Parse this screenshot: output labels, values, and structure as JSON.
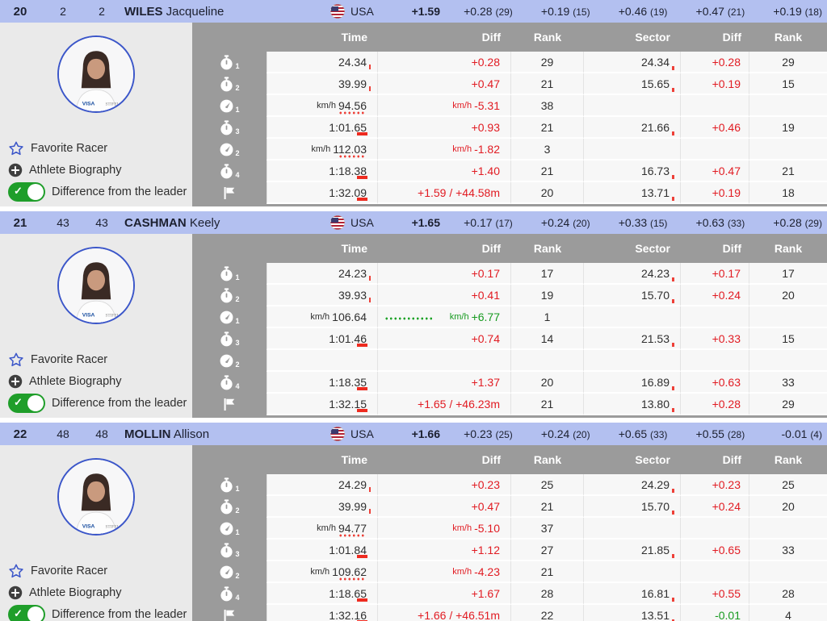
{
  "ui": {
    "favorite_label": "Favorite Racer",
    "biography_label": "Athlete Biography",
    "toggle_label": "Difference from the leader",
    "columns": [
      "Time",
      "Diff",
      "Rank",
      "Sector",
      "Diff",
      "Rank"
    ],
    "speed_unit": "km/h",
    "nation": "USA"
  },
  "colors": {
    "header_blue": "#b3c0f0",
    "table_gray": "#9b9b9b",
    "panel_gray": "#eaeaea",
    "diff_red": "#e11b22",
    "diff_green": "#169a1f",
    "star_blue": "#3b56c9",
    "toggle_green": "#1f9e2a"
  },
  "racers": [
    {
      "rank": "20",
      "bib1": "2",
      "bib2": "2",
      "last_name": "WILES",
      "first_name": "Jacqueline",
      "nation": "USA",
      "total_diff": "+1.59",
      "split_diffs": [
        {
          "diff": "+0.28",
          "rank": "(29)"
        },
        {
          "diff": "+0.19",
          "rank": "(15)"
        },
        {
          "diff": "+0.46",
          "rank": "(19)"
        },
        {
          "diff": "+0.47",
          "rank": "(21)"
        },
        {
          "diff": "+0.19",
          "rank": "(18)"
        }
      ],
      "rows": [
        {
          "icon": "stopwatch",
          "sub": "1",
          "tu": "",
          "time": "24.34",
          "du": "",
          "diff": "+0.28",
          "dc": "red",
          "rank": "29",
          "sector": "24.34",
          "sdiff": "+0.28",
          "sdc": "red",
          "srank": "29",
          "tmark": "tick",
          "smark": "tick",
          "dmark": ""
        },
        {
          "icon": "stopwatch",
          "sub": "2",
          "tu": "",
          "time": "39.99",
          "du": "",
          "diff": "+0.47",
          "dc": "red",
          "rank": "21",
          "sector": "15.65",
          "sdiff": "+0.19",
          "sdc": "red",
          "srank": "15",
          "tmark": "tick",
          "smark": "tick",
          "dmark": ""
        },
        {
          "icon": "speed",
          "sub": "1",
          "tu": "km/h",
          "time": "94.56",
          "du": "km/h",
          "diff": "-5.31",
          "dc": "red",
          "rank": "38",
          "sector": "",
          "sdiff": "",
          "sdc": "",
          "srank": "",
          "tmark": "dots",
          "smark": "",
          "dmark": ""
        },
        {
          "icon": "stopwatch",
          "sub": "3",
          "tu": "",
          "time": "1:01.65",
          "du": "",
          "diff": "+0.93",
          "dc": "red",
          "rank": "21",
          "sector": "21.66",
          "sdiff": "+0.46",
          "sdc": "red",
          "srank": "19",
          "tmark": "bar",
          "smark": "tick",
          "dmark": ""
        },
        {
          "icon": "speed",
          "sub": "2",
          "tu": "km/h",
          "time": "112.03",
          "du": "km/h",
          "diff": "-1.82",
          "dc": "red",
          "rank": "3",
          "sector": "",
          "sdiff": "",
          "sdc": "",
          "srank": "",
          "tmark": "dots",
          "smark": "",
          "dmark": ""
        },
        {
          "icon": "stopwatch",
          "sub": "4",
          "tu": "",
          "time": "1:18.38",
          "du": "",
          "diff": "+1.40",
          "dc": "red",
          "rank": "21",
          "sector": "16.73",
          "sdiff": "+0.47",
          "sdc": "red",
          "srank": "21",
          "tmark": "bar",
          "smark": "tick",
          "dmark": ""
        },
        {
          "icon": "flag",
          "sub": "",
          "tu": "",
          "time": "1:32.09",
          "du": "",
          "diff": "+1.59 / +44.58m",
          "dc": "red",
          "rank": "20",
          "sector": "13.71",
          "sdiff": "+0.19",
          "sdc": "red",
          "srank": "18",
          "tmark": "bar",
          "smark": "tick",
          "dmark": ""
        }
      ]
    },
    {
      "rank": "21",
      "bib1": "43",
      "bib2": "43",
      "last_name": "CASHMAN",
      "first_name": "Keely",
      "nation": "USA",
      "total_diff": "+1.65",
      "split_diffs": [
        {
          "diff": "+0.17",
          "rank": "(17)"
        },
        {
          "diff": "+0.24",
          "rank": "(20)"
        },
        {
          "diff": "+0.33",
          "rank": "(15)"
        },
        {
          "diff": "+0.63",
          "rank": "(33)"
        },
        {
          "diff": "+0.28",
          "rank": "(29)"
        }
      ],
      "rows": [
        {
          "icon": "stopwatch",
          "sub": "1",
          "tu": "",
          "time": "24.23",
          "du": "",
          "diff": "+0.17",
          "dc": "red",
          "rank": "17",
          "sector": "24.23",
          "sdiff": "+0.17",
          "sdc": "red",
          "srank": "17",
          "tmark": "tick",
          "smark": "tick",
          "dmark": ""
        },
        {
          "icon": "stopwatch",
          "sub": "2",
          "tu": "",
          "time": "39.93",
          "du": "",
          "diff": "+0.41",
          "dc": "red",
          "rank": "19",
          "sector": "15.70",
          "sdiff": "+0.24",
          "sdc": "red",
          "srank": "20",
          "tmark": "tick",
          "smark": "tick",
          "dmark": ""
        },
        {
          "icon": "speed",
          "sub": "1",
          "tu": "km/h",
          "time": "106.64",
          "du": "km/h",
          "diff": "+6.77",
          "dc": "green",
          "rank": "1",
          "sector": "",
          "sdiff": "",
          "sdc": "",
          "srank": "",
          "tmark": "",
          "smark": "",
          "dmark": "dots-green"
        },
        {
          "icon": "stopwatch",
          "sub": "3",
          "tu": "",
          "time": "1:01.46",
          "du": "",
          "diff": "+0.74",
          "dc": "red",
          "rank": "14",
          "sector": "21.53",
          "sdiff": "+0.33",
          "sdc": "red",
          "srank": "15",
          "tmark": "bar",
          "smark": "tick",
          "dmark": ""
        },
        {
          "icon": "speed",
          "sub": "2",
          "tu": "",
          "time": "",
          "du": "",
          "diff": "",
          "dc": "",
          "rank": "",
          "sector": "",
          "sdiff": "",
          "sdc": "",
          "srank": "",
          "tmark": "",
          "smark": "",
          "dmark": ""
        },
        {
          "icon": "stopwatch",
          "sub": "4",
          "tu": "",
          "time": "1:18.35",
          "du": "",
          "diff": "+1.37",
          "dc": "red",
          "rank": "20",
          "sector": "16.89",
          "sdiff": "+0.63",
          "sdc": "red",
          "srank": "33",
          "tmark": "bar",
          "smark": "tick",
          "dmark": ""
        },
        {
          "icon": "flag",
          "sub": "",
          "tu": "",
          "time": "1:32.15",
          "du": "",
          "diff": "+1.65 / +46.23m",
          "dc": "red",
          "rank": "21",
          "sector": "13.80",
          "sdiff": "+0.28",
          "sdc": "red",
          "srank": "29",
          "tmark": "bar",
          "smark": "tick",
          "dmark": ""
        }
      ]
    },
    {
      "rank": "22",
      "bib1": "48",
      "bib2": "48",
      "last_name": "MOLLIN",
      "first_name": "Allison",
      "nation": "USA",
      "total_diff": "+1.66",
      "split_diffs": [
        {
          "diff": "+0.23",
          "rank": "(25)"
        },
        {
          "diff": "+0.24",
          "rank": "(20)"
        },
        {
          "diff": "+0.65",
          "rank": "(33)"
        },
        {
          "diff": "+0.55",
          "rank": "(28)"
        },
        {
          "diff": "-0.01",
          "rank": "(4)"
        }
      ],
      "rows": [
        {
          "icon": "stopwatch",
          "sub": "1",
          "tu": "",
          "time": "24.29",
          "du": "",
          "diff": "+0.23",
          "dc": "red",
          "rank": "25",
          "sector": "24.29",
          "sdiff": "+0.23",
          "sdc": "red",
          "srank": "25",
          "tmark": "tick",
          "smark": "tick",
          "dmark": ""
        },
        {
          "icon": "stopwatch",
          "sub": "2",
          "tu": "",
          "time": "39.99",
          "du": "",
          "diff": "+0.47",
          "dc": "red",
          "rank": "21",
          "sector": "15.70",
          "sdiff": "+0.24",
          "sdc": "red",
          "srank": "20",
          "tmark": "tick",
          "smark": "tick",
          "dmark": ""
        },
        {
          "icon": "speed",
          "sub": "1",
          "tu": "km/h",
          "time": "94.77",
          "du": "km/h",
          "diff": "-5.10",
          "dc": "red",
          "rank": "37",
          "sector": "",
          "sdiff": "",
          "sdc": "",
          "srank": "",
          "tmark": "dots",
          "smark": "",
          "dmark": ""
        },
        {
          "icon": "stopwatch",
          "sub": "3",
          "tu": "",
          "time": "1:01.84",
          "du": "",
          "diff": "+1.12",
          "dc": "red",
          "rank": "27",
          "sector": "21.85",
          "sdiff": "+0.65",
          "sdc": "red",
          "srank": "33",
          "tmark": "bar",
          "smark": "tick",
          "dmark": ""
        },
        {
          "icon": "speed",
          "sub": "2",
          "tu": "km/h",
          "time": "109.62",
          "du": "km/h",
          "diff": "-4.23",
          "dc": "red",
          "rank": "21",
          "sector": "",
          "sdiff": "",
          "sdc": "",
          "srank": "",
          "tmark": "dots",
          "smark": "",
          "dmark": ""
        },
        {
          "icon": "stopwatch",
          "sub": "4",
          "tu": "",
          "time": "1:18.65",
          "du": "",
          "diff": "+1.67",
          "dc": "red",
          "rank": "28",
          "sector": "16.81",
          "sdiff": "+0.55",
          "sdc": "red",
          "srank": "28",
          "tmark": "bar",
          "smark": "tick",
          "dmark": ""
        },
        {
          "icon": "flag",
          "sub": "",
          "tu": "",
          "time": "1:32.16",
          "du": "",
          "diff": "+1.66 / +46.51m",
          "dc": "red",
          "rank": "22",
          "sector": "13.51",
          "sdiff": "-0.01",
          "sdc": "green",
          "srank": "4",
          "tmark": "bar",
          "smark": "tick",
          "dmark": ""
        }
      ]
    }
  ]
}
